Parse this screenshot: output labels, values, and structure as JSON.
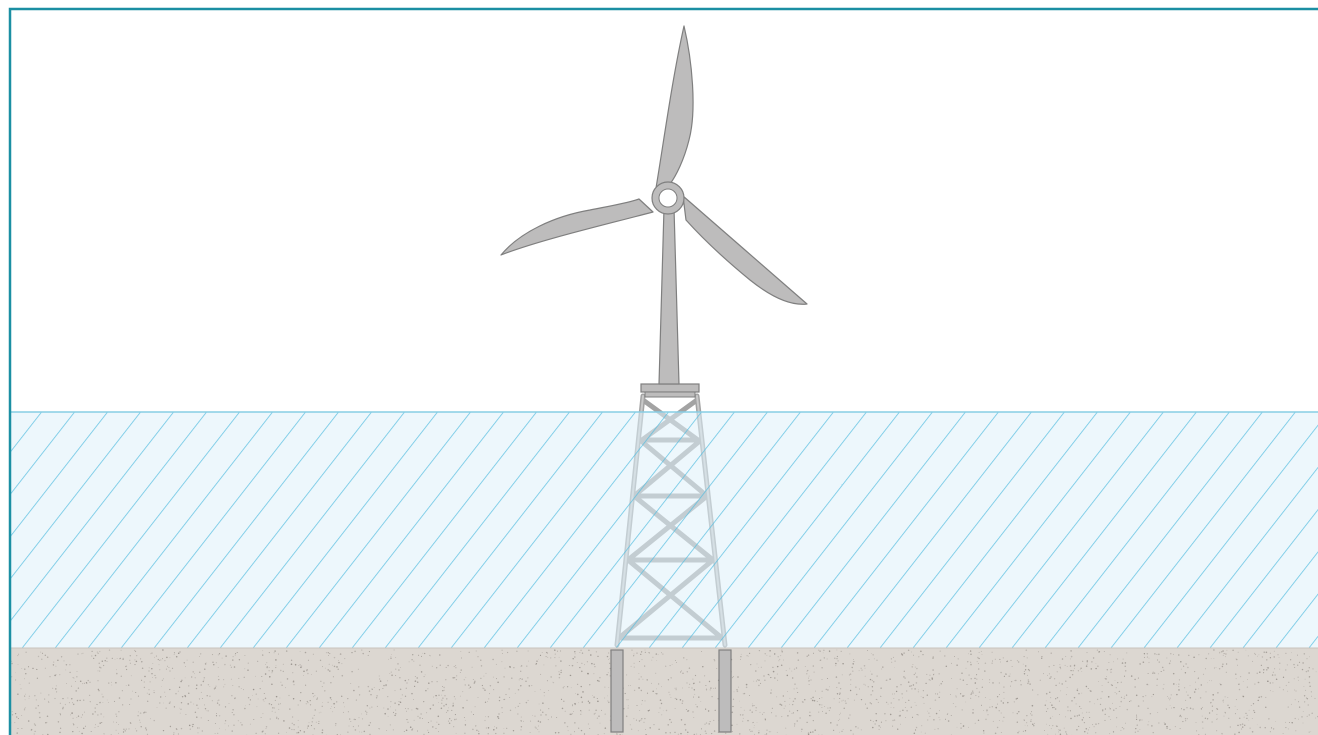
{
  "diagram": {
    "subject": "offshore-wind-turbine-jacket-foundation",
    "colors": {
      "frame": "#1b8fa3",
      "sky": "#ffffff",
      "water_fill": "#dff1f9",
      "water_line": "#87cde4",
      "water_hatch": "#55bde0",
      "seabed_fill": "#dcd7d1",
      "seabed_speck": "#8e8882",
      "steel_fill": "#bdbcbc",
      "steel_stroke": "#7f7f7f",
      "hub_fill": "#ffffff"
    },
    "components": [
      "rotor-blades",
      "hub",
      "tower",
      "transition-platform",
      "jacket-structure",
      "piles",
      "water",
      "seabed"
    ]
  }
}
